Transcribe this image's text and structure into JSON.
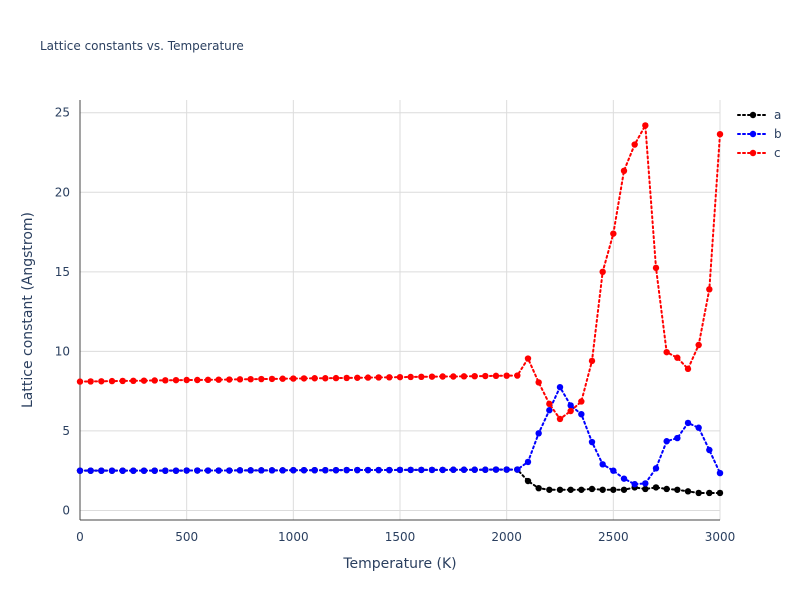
{
  "chart_data": {
    "type": "line",
    "title": "Lattice constants vs. Temperature",
    "xlabel": "Temperature (K)",
    "ylabel": "Lattice constant (Angstrom)",
    "xlim": [
      0,
      3000
    ],
    "ylim": [
      -0.6,
      25.8
    ],
    "xticks": [
      0,
      500,
      1000,
      1500,
      2000,
      2500,
      3000
    ],
    "yticks": [
      0,
      5,
      10,
      15,
      20,
      25
    ],
    "grid": true,
    "legend_position": "top-right",
    "x": [
      0,
      50,
      100,
      150,
      200,
      250,
      300,
      350,
      400,
      450,
      500,
      550,
      600,
      650,
      700,
      750,
      800,
      850,
      900,
      950,
      1000,
      1050,
      1100,
      1150,
      1200,
      1250,
      1300,
      1350,
      1400,
      1450,
      1500,
      1550,
      1600,
      1650,
      1700,
      1750,
      1800,
      1850,
      1900,
      1950,
      2000,
      2050,
      2100,
      2150,
      2200,
      2250,
      2300,
      2350,
      2400,
      2450,
      2500,
      2550,
      2600,
      2650,
      2700,
      2750,
      2800,
      2850,
      2900,
      2950,
      3000
    ],
    "series": [
      {
        "name": "a",
        "color": "#000000",
        "values": [
          2.5,
          2.5,
          2.5,
          2.5,
          2.5,
          2.5,
          2.5,
          2.5,
          2.5,
          2.5,
          2.51,
          2.51,
          2.51,
          2.51,
          2.51,
          2.52,
          2.52,
          2.52,
          2.52,
          2.52,
          2.53,
          2.53,
          2.53,
          2.53,
          2.53,
          2.54,
          2.54,
          2.54,
          2.54,
          2.54,
          2.55,
          2.55,
          2.55,
          2.55,
          2.55,
          2.56,
          2.56,
          2.56,
          2.56,
          2.57,
          2.57,
          2.57,
          1.85,
          1.4,
          1.3,
          1.3,
          1.3,
          1.3,
          1.35,
          1.3,
          1.3,
          1.3,
          1.45,
          1.35,
          1.45,
          1.35,
          1.3,
          1.2,
          1.1,
          1.1,
          1.1
        ]
      },
      {
        "name": "b",
        "color": "#0000ff",
        "values": [
          2.5,
          2.5,
          2.5,
          2.5,
          2.5,
          2.5,
          2.5,
          2.5,
          2.5,
          2.5,
          2.51,
          2.51,
          2.51,
          2.51,
          2.51,
          2.52,
          2.52,
          2.52,
          2.52,
          2.52,
          2.53,
          2.53,
          2.53,
          2.53,
          2.53,
          2.54,
          2.54,
          2.54,
          2.54,
          2.54,
          2.55,
          2.55,
          2.55,
          2.55,
          2.55,
          2.56,
          2.56,
          2.56,
          2.56,
          2.57,
          2.57,
          2.57,
          3.05,
          4.85,
          6.3,
          7.75,
          6.6,
          6.05,
          4.3,
          2.9,
          2.5,
          2.0,
          1.65,
          1.7,
          2.65,
          4.35,
          4.55,
          5.5,
          5.2,
          3.8,
          2.35
        ]
      },
      {
        "name": "c",
        "color": "#ff0000",
        "values": [
          8.1,
          8.11,
          8.12,
          8.13,
          8.14,
          8.15,
          8.16,
          8.17,
          8.18,
          8.19,
          8.2,
          8.2,
          8.21,
          8.22,
          8.23,
          8.24,
          8.25,
          8.26,
          8.27,
          8.28,
          8.29,
          8.3,
          8.31,
          8.31,
          8.32,
          8.33,
          8.34,
          8.35,
          8.36,
          8.37,
          8.38,
          8.39,
          8.4,
          8.41,
          8.42,
          8.42,
          8.43,
          8.44,
          8.45,
          8.46,
          8.47,
          8.48,
          9.55,
          8.05,
          6.7,
          5.75,
          6.25,
          6.85,
          9.4,
          15.0,
          17.4,
          21.35,
          23.0,
          24.2,
          15.25,
          9.95,
          9.6,
          8.9,
          10.4,
          13.9,
          23.65
        ]
      }
    ]
  }
}
